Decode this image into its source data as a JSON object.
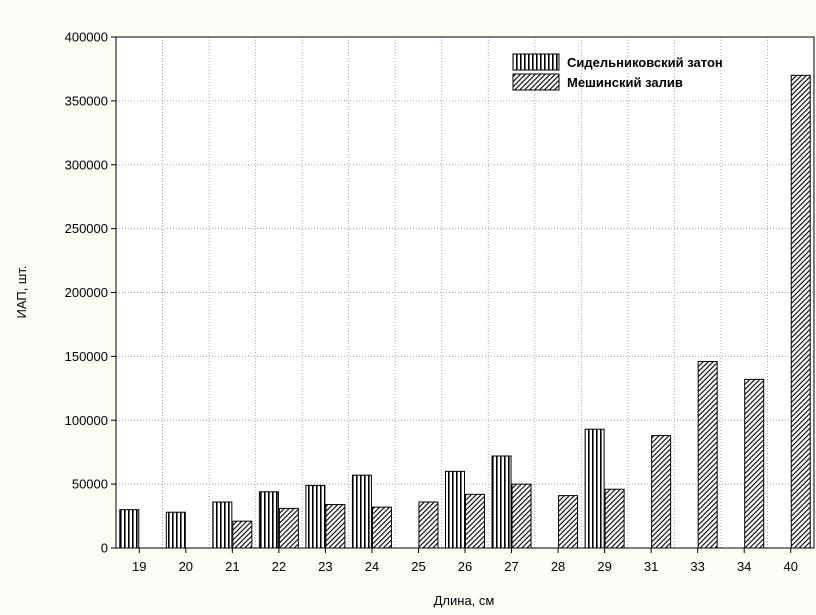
{
  "chart_data": {
    "type": "bar",
    "title": "",
    "xlabel": "Длина, см",
    "ylabel": "ИАП, шт.",
    "ylim": [
      0,
      400000
    ],
    "yticks": [
      0,
      50000,
      100000,
      150000,
      200000,
      250000,
      300000,
      350000,
      400000
    ],
    "ytick_labels": [
      "0",
      "50000",
      "100000",
      "150000",
      "200000",
      "250000",
      "300000",
      "350000",
      "400000"
    ],
    "categories": [
      "19",
      "20",
      "21",
      "22",
      "23",
      "24",
      "25",
      "26",
      "27",
      "28",
      "29",
      "31",
      "33",
      "34",
      "40"
    ],
    "grid": true,
    "legend_position": "top-right",
    "series": [
      {
        "name": "Сидельниковский затон",
        "pattern": "vertical-stripes",
        "values": [
          30000,
          28000,
          36000,
          44000,
          49000,
          57000,
          null,
          60000,
          72000,
          null,
          93000,
          null,
          null,
          null,
          null
        ]
      },
      {
        "name": "Мешинский залив",
        "pattern": "diagonal-hatch",
        "values": [
          null,
          null,
          21000,
          31000,
          34000,
          32000,
          36000,
          42000,
          50000,
          41000,
          46000,
          88000,
          146000,
          132000,
          370000
        ]
      }
    ]
  }
}
